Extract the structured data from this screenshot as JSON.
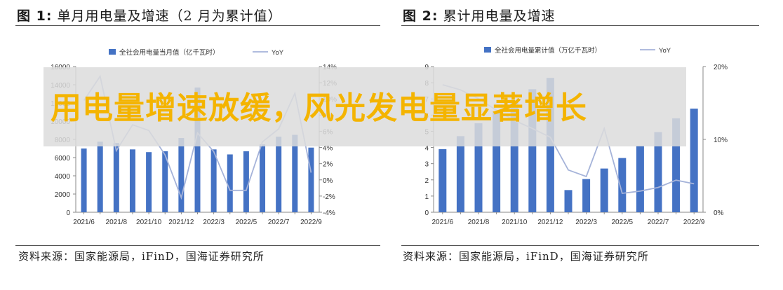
{
  "figure1": {
    "title_prefix": "图 1:",
    "title_text": "单月用电量及增速（2 月为累计值）",
    "source": "资料来源：国家能源局，iFinD，国海证券研究所"
  },
  "figure2": {
    "title_prefix": "图 2:",
    "title_text": "累计用电量及增速",
    "source": "资料来源：国家能源局，iFinD，国海证券研究所"
  },
  "overlay": {
    "text": "用电量增速放缓，风光发电量显著增长"
  },
  "colors": {
    "bar": "#4472c4",
    "line": "#a5b3d9",
    "banner": "#dcdcdc",
    "overlay_text": "#f4b400"
  },
  "chart_data": [
    {
      "type": "bar",
      "legend": [
        "全社会用电量当月值（亿千瓦时）",
        "YoY"
      ],
      "categories": [
        "2021/6",
        "2021/7",
        "2021/8",
        "2021/9",
        "2021/10",
        "2021/11",
        "2021/12",
        "2022/2",
        "2022/3",
        "2022/4",
        "2022/5",
        "2022/6",
        "2022/7",
        "2022/8",
        "2022/9"
      ],
      "x_tick_labels": [
        "2021/6",
        "2021/8",
        "2021/10",
        "2021/12",
        "2022/3",
        "2022/5",
        "2022/7",
        "2022/9"
      ],
      "series": [
        {
          "name": "全社会用电量当月值（亿千瓦时）",
          "type": "bar",
          "axis": "left",
          "values": [
            7000,
            7750,
            7600,
            6900,
            6600,
            6700,
            8150,
            13700,
            6900,
            6350,
            6700,
            7450,
            8300,
            8500,
            7100
          ]
        },
        {
          "name": "YoY",
          "type": "line",
          "axis": "right",
          "values": [
            9.8,
            12.8,
            3.6,
            6.8,
            6.1,
            3.1,
            -2.2,
            5.8,
            3.5,
            -1.3,
            -1.3,
            4.7,
            6.3,
            10.7,
            0.9
          ]
        }
      ],
      "ylim_left": [
        0,
        16000
      ],
      "yticks_left": [
        0,
        2000,
        4000,
        6000,
        8000,
        10000,
        12000,
        14000,
        16000
      ],
      "ylim_right": [
        -4,
        14
      ],
      "yticks_right_labels": [
        "-4%",
        "-2%",
        "0%",
        "2%",
        "4%",
        "6%",
        "8%",
        "10%",
        "12%",
        "14%"
      ],
      "legend_position": "top-center"
    },
    {
      "type": "bar",
      "legend": [
        "全社会用电量累计值（万亿千瓦时）",
        "YoY"
      ],
      "categories": [
        "2021/6",
        "2021/7",
        "2021/8",
        "2021/9",
        "2021/10",
        "2021/11",
        "2021/12",
        "2022/2",
        "2022/3",
        "2022/4",
        "2022/5",
        "2022/6",
        "2022/7",
        "2022/8",
        "2022/9"
      ],
      "x_tick_labels": [
        "2021/6",
        "2021/8",
        "2021/10",
        "2021/12",
        "2022/3",
        "2022/5",
        "2022/7",
        "2022/9"
      ],
      "series": [
        {
          "name": "全社会用电量累计值（万亿千瓦时）",
          "type": "bar",
          "axis": "left",
          "values": [
            3.9,
            4.7,
            5.5,
            6.2,
            6.9,
            7.6,
            8.3,
            1.37,
            2.05,
            2.7,
            3.35,
            4.1,
            4.95,
            5.8,
            6.4
          ]
        },
        {
          "name": "YoY",
          "type": "line",
          "axis": "right",
          "values": [
            17.5,
            16.8,
            15.6,
            14.0,
            12.6,
            11.5,
            10.3,
            5.8,
            4.9,
            11.5,
            2.6,
            2.9,
            3.4,
            4.4,
            3.9
          ]
        }
      ],
      "ylim_left": [
        0,
        9
      ],
      "yticks_left": [
        0,
        1,
        2,
        3,
        4,
        5,
        6,
        7,
        8,
        9
      ],
      "ylim_right": [
        0,
        20
      ],
      "yticks_right_labels": [
        "0%",
        "10%",
        "20%"
      ],
      "legend_position": "top-center"
    }
  ]
}
